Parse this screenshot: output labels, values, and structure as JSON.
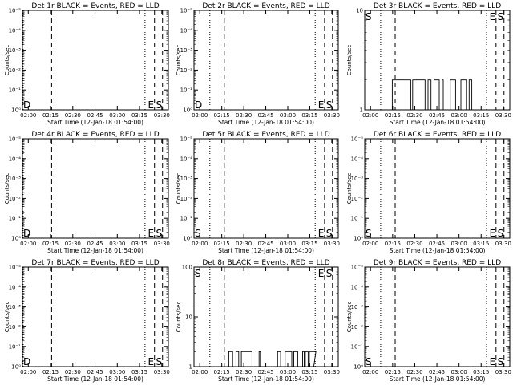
{
  "chart_data": [
    {
      "type": "line",
      "title": "Det 1r BLACK = Events, RED = LLD",
      "xlabel": "Start Time (12-Jan-18 01:54:00)",
      "ylabel": "Counts/sec",
      "yscale": "log",
      "y_ticks": [
        "10⁰",
        "10⁻¹",
        "10⁻²",
        "10⁻³",
        "10⁻⁴",
        "10⁻⁵"
      ],
      "x_ticks": [
        "02:00",
        "02:15",
        "02:30",
        "02:45",
        "03:00",
        "03:15",
        "03:30"
      ],
      "flags": [
        "D",
        "E",
        "S"
      ],
      "series": []
    },
    {
      "type": "line",
      "title": "Det 2r BLACK = Events, RED = LLD",
      "xlabel": "Start Time (12-Jan-18 01:54:00)",
      "ylabel": "Counts/sec",
      "yscale": "log",
      "y_ticks": [
        "10⁰",
        "10⁻¹",
        "10⁻²",
        "10⁻³",
        "10⁻⁴",
        "10⁻⁵"
      ],
      "x_ticks": [
        "02:00",
        "02:15",
        "02:30",
        "02:45",
        "03:00",
        "03:15",
        "03:30"
      ],
      "flags": [
        "D",
        "E",
        "S"
      ],
      "series": []
    },
    {
      "type": "line",
      "title": "Det 3r BLACK = Events, RED = LLD",
      "xlabel": "Start Time (12-Jan-18 01:54:00)",
      "ylabel": "Counts/sec",
      "yscale": "log",
      "y_ticks": [
        "1",
        "10"
      ],
      "x_ticks": [
        "02:00",
        "02:15",
        "02:30",
        "02:45",
        "03:00",
        "03:15",
        "03:30"
      ],
      "flags": [
        "S",
        "E",
        "S"
      ],
      "series": [
        {
          "values": "binary-2"
        }
      ]
    },
    {
      "type": "line",
      "title": "Det 4r BLACK = Events, RED = LLD",
      "xlabel": "Start Time (12-Jan-18 01:54:00)",
      "ylabel": "Counts/sec",
      "yscale": "log",
      "y_ticks": [
        "10⁰",
        "10⁻¹",
        "10⁻²",
        "10⁻³",
        "10⁻⁴",
        "10⁻⁵"
      ],
      "x_ticks": [
        "02:00",
        "02:15",
        "02:30",
        "02:45",
        "03:00",
        "03:15",
        "03:30"
      ],
      "flags": [
        "D",
        "E",
        "S"
      ],
      "series": []
    },
    {
      "type": "line",
      "title": "Det 5r BLACK = Events, RED = LLD",
      "xlabel": "Start Time (12-Jan-18 01:54:00)",
      "ylabel": "Counts/sec",
      "yscale": "log",
      "y_ticks": [
        "10⁰",
        "10⁻¹",
        "10⁻²",
        "10⁻³",
        "10⁻⁴",
        "10⁻⁵"
      ],
      "x_ticks": [
        "02:00",
        "02:15",
        "02:30",
        "02:45",
        "03:00",
        "03:15",
        "03:30"
      ],
      "flags": [
        "S",
        "E",
        "S"
      ],
      "series": []
    },
    {
      "type": "line",
      "title": "Det 6r BLACK = Events, RED = LLD",
      "xlabel": "Start Time (12-Jan-18 01:54:00)",
      "ylabel": "Counts/sec",
      "yscale": "log",
      "y_ticks": [
        "10⁰",
        "10⁻¹",
        "10⁻²",
        "10⁻³",
        "10⁻⁴",
        "10⁻⁵"
      ],
      "x_ticks": [
        "02:00",
        "02:15",
        "02:30",
        "02:45",
        "03:00",
        "03:15",
        "03:30"
      ],
      "flags": [
        "S",
        "E",
        "S"
      ],
      "series": []
    },
    {
      "type": "line",
      "title": "Det 7r BLACK = Events, RED = LLD",
      "xlabel": "Start Time (12-Jan-18 01:54:00)",
      "ylabel": "Counts/sec",
      "yscale": "log",
      "y_ticks": [
        "10⁰",
        "10⁻¹",
        "10⁻²",
        "10⁻³",
        "10⁻⁴",
        "10⁻⁵"
      ],
      "x_ticks": [
        "02:00",
        "02:15",
        "02:30",
        "02:45",
        "03:00",
        "03:15",
        "03:30"
      ],
      "flags": [
        "D",
        "E",
        "S"
      ],
      "series": []
    },
    {
      "type": "line",
      "title": "Det 8r BLACK = Events, RED = LLD",
      "xlabel": "Start Time (12-Jan-18 01:54:00)",
      "ylabel": "Counts/sec",
      "yscale": "log",
      "y_ticks": [
        "1",
        "10",
        "100"
      ],
      "x_ticks": [
        "02:00",
        "02:15",
        "02:30",
        "02:45",
        "03:00",
        "03:15",
        "03:30"
      ],
      "flags": [
        "S",
        "E",
        "S"
      ],
      "series": [
        {
          "values": "binary-2"
        }
      ]
    },
    {
      "type": "line",
      "title": "Det 9r BLACK = Events, RED = LLD",
      "xlabel": "Start Time (12-Jan-18 01:54:00)",
      "ylabel": "Counts/sec",
      "yscale": "log",
      "y_ticks": [
        "10⁰",
        "10⁻¹",
        "10⁻²",
        "10⁻³",
        "10⁻⁴",
        "10⁻⁵"
      ],
      "x_ticks": [
        "02:00",
        "02:15",
        "02:30",
        "02:45",
        "03:00",
        "03:15",
        "03:30"
      ],
      "flags": [
        "S",
        "E",
        "S"
      ],
      "series": []
    }
  ]
}
